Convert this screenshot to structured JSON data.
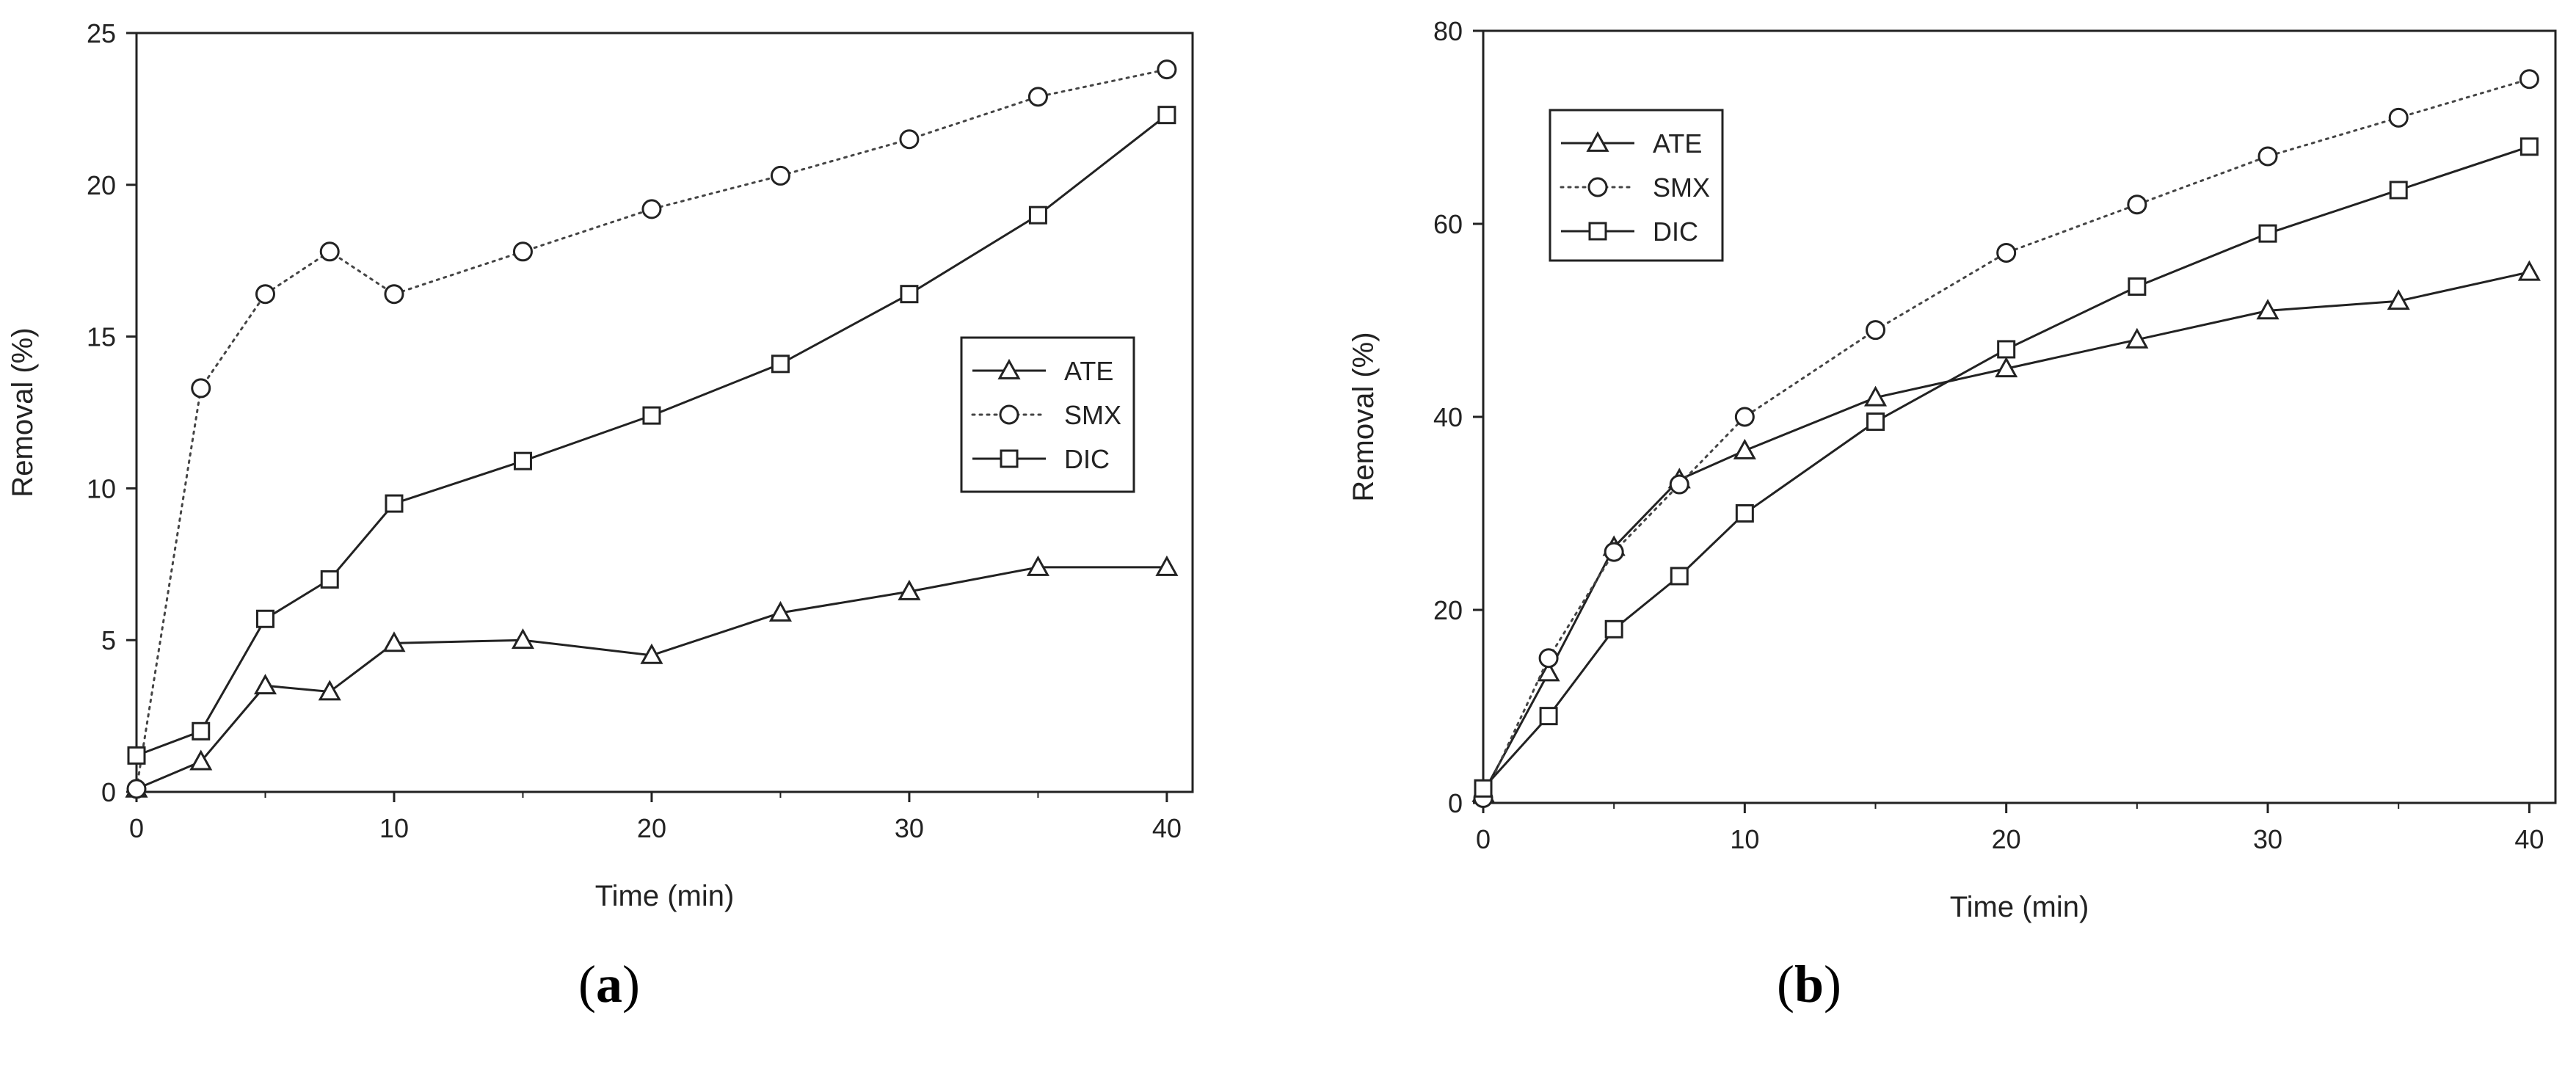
{
  "chart_data": [
    {
      "type": "line",
      "panel_label": "a",
      "xlabel": "Time (min)",
      "ylabel": "Removal (%)",
      "xlim": [
        0,
        41
      ],
      "ylim": [
        0,
        25
      ],
      "xticks": [
        "0",
        "10",
        "20",
        "30",
        "40"
      ],
      "yticks": [
        "0",
        "5",
        "10",
        "15",
        "20",
        "25"
      ],
      "legend_position": "center-right",
      "series": [
        {
          "name": "ATE",
          "marker": "triangle",
          "line": "solid",
          "x": [
            0,
            2.5,
            5,
            7.5,
            10,
            15,
            20,
            25,
            30,
            35,
            40
          ],
          "y": [
            0.1,
            1.0,
            3.5,
            3.3,
            4.9,
            5.0,
            4.5,
            5.9,
            6.6,
            7.4,
            7.4
          ]
        },
        {
          "name": "SMX",
          "marker": "circle",
          "line": "dotted",
          "x": [
            0,
            2.5,
            5,
            7.5,
            10,
            15,
            20,
            25,
            30,
            35,
            40
          ],
          "y": [
            0.1,
            13.3,
            16.4,
            17.8,
            16.4,
            17.8,
            19.2,
            20.3,
            21.5,
            22.9,
            23.8
          ]
        },
        {
          "name": "DIC",
          "marker": "square",
          "line": "solid",
          "x": [
            0,
            2.5,
            5,
            7.5,
            10,
            15,
            20,
            25,
            30,
            35,
            40
          ],
          "y": [
            1.2,
            2.0,
            5.7,
            7.0,
            9.5,
            10.9,
            12.4,
            14.1,
            16.4,
            19.0,
            22.3
          ]
        }
      ]
    },
    {
      "type": "line",
      "panel_label": "b",
      "xlabel": "Time (min)",
      "ylabel": "Removal (%)",
      "xlim": [
        0,
        41
      ],
      "ylim": [
        0,
        80
      ],
      "xticks": [
        "0",
        "10",
        "20",
        "30",
        "40"
      ],
      "yticks": [
        "0",
        "20",
        "40",
        "60",
        "80"
      ],
      "legend_position": "top-left",
      "series": [
        {
          "name": "ATE",
          "marker": "triangle",
          "line": "solid",
          "x": [
            0,
            2.5,
            5,
            7.5,
            10,
            15,
            20,
            25,
            30,
            35,
            40
          ],
          "y": [
            1.0,
            13.5,
            26.5,
            33.5,
            36.5,
            42.0,
            45.0,
            48.0,
            51.0,
            52.0,
            55.0
          ]
        },
        {
          "name": "SMX",
          "marker": "circle",
          "line": "dotted",
          "x": [
            0,
            2.5,
            5,
            7.5,
            10,
            15,
            20,
            25,
            30,
            35,
            40
          ],
          "y": [
            0.5,
            15.0,
            26.0,
            33.0,
            40.0,
            49.0,
            57.0,
            62.0,
            67.0,
            71.0,
            75.0
          ]
        },
        {
          "name": "DIC",
          "marker": "square",
          "line": "solid",
          "x": [
            0,
            2.5,
            5,
            7.5,
            10,
            15,
            20,
            25,
            30,
            35,
            40
          ],
          "y": [
            1.5,
            9.0,
            18.0,
            23.5,
            30.0,
            39.5,
            47.0,
            53.5,
            59.0,
            63.5,
            68.0
          ]
        }
      ]
    }
  ]
}
